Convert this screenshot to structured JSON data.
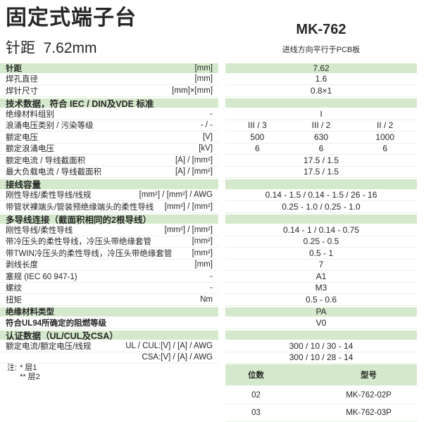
{
  "header": {
    "title": "固定式端子台",
    "subtitle": "针距  7.62mm",
    "model": "MK-762",
    "model_note": "进线方向平行于PCB板"
  },
  "colors": {
    "accent_green": "#d4e9cb",
    "row_separator": "#e6f3e1",
    "text": "#262626"
  },
  "table": {
    "rows": [
      {
        "type": "green",
        "label": "针距",
        "unit": "[mm]",
        "value": "7.62"
      },
      {
        "type": "normal",
        "label": "焊孔直径",
        "unit": "[mm]",
        "value": "1.6"
      },
      {
        "type": "normal",
        "label": "焊针尺寸",
        "unit": "[mm]×[mm]",
        "value": "0.8×1"
      },
      {
        "type": "section",
        "label": "技术数据，符合 IEC / DIN及VDE 标准",
        "unit": "",
        "value": ""
      },
      {
        "type": "normal",
        "label": "绝缘材料组别",
        "unit": "-",
        "value": "I"
      },
      {
        "type": "normal",
        "label": "浪涌电压类别 / 污染等级",
        "unit": "- / -",
        "values3": [
          "III / 3",
          "III / 2",
          "II / 2"
        ]
      },
      {
        "type": "normal",
        "label": "额定电压",
        "unit": "[V]",
        "values3": [
          "500",
          "630",
          "1000"
        ]
      },
      {
        "type": "normal",
        "label": "额定浪涌电压",
        "unit": "[kV]",
        "values3": [
          "6",
          "6",
          "6"
        ]
      },
      {
        "type": "normal",
        "label": "额定电流 / 导线截面积",
        "unit": "[A] / [mm²]",
        "value": "17.5 / 1.5"
      },
      {
        "type": "normal",
        "label": "最大负载电流 / 导线截面积",
        "unit": "[A] / [mm²]",
        "value": "17.5 / 1.5"
      },
      {
        "type": "section",
        "label": "接线容量",
        "unit": "",
        "value": ""
      },
      {
        "type": "normal",
        "label": "刚性导线/柔性导线/线规",
        "unit": "[mm²] / [mm²] / AWG",
        "value": "0.14 - 1.5 / 0.14 - 1.5 / 26 - 16"
      },
      {
        "type": "normal",
        "label": "带管状裸端头/管装预绝缘端头的柔性导线",
        "unit": "[mm²] / [mm²]",
        "value": "0.25 - 1.0 / 0.25 - 1.0"
      },
      {
        "type": "section",
        "label": "多导线连接（截面积相同的2根导线）",
        "unit": "",
        "value": ""
      },
      {
        "type": "normal",
        "label": "刚性导线/柔性导线",
        "unit": "[mm²] / [mm²]",
        "value": "0.14 - 1 / 0.14 - 0.75"
      },
      {
        "type": "normal",
        "label": "带冷压头的柔性导线，冷压头带绝缘套管",
        "unit": "[mm²]",
        "value": "0.25 - 0.5"
      },
      {
        "type": "normal",
        "label": "带TWIN冷压头的柔性导线，冷压头带绝缘套管",
        "unit": "[mm²]",
        "value": "0.5 - 1"
      },
      {
        "type": "normal",
        "label": "剥线长度",
        "unit": "[mm]",
        "value": "7"
      },
      {
        "type": "normal",
        "label": "塞规 (IEC 60 947-1)",
        "unit": "-",
        "value": "A1"
      },
      {
        "type": "normal",
        "label": "螺纹",
        "unit": "-",
        "value": "M3"
      },
      {
        "type": "normal",
        "label": "扭矩",
        "unit": "Nm",
        "value": "0.5 - 0.6"
      },
      {
        "type": "green",
        "label": "绝缘材料类型",
        "unit": "",
        "value": "PA"
      },
      {
        "type": "normal-bold",
        "label": "符合UL94所确定的阻燃等级",
        "unit": "",
        "value": "V0"
      },
      {
        "type": "section",
        "label": "认证数据（UL/CUL及CSA）",
        "unit": "",
        "value": ""
      },
      {
        "type": "normal",
        "label": "额定电流/额定电压/线规",
        "unit": "UL / CUL:[V] / [A] / AWG",
        "value": "300 / 10 / 30 - 14"
      },
      {
        "type": "normal",
        "label": "",
        "unit": "CSA:[V] / [A] / AWG",
        "value": "300 / 10 / 28 - 14"
      }
    ]
  },
  "notes": {
    "prefix": "注:",
    "lines": [
      "* 层1",
      "** 层2"
    ]
  },
  "models_table": {
    "headers": [
      "位数",
      "型号"
    ],
    "rows": [
      [
        "02",
        "MK-762-02P"
      ],
      [
        "03",
        "MK-762-03P"
      ]
    ]
  }
}
